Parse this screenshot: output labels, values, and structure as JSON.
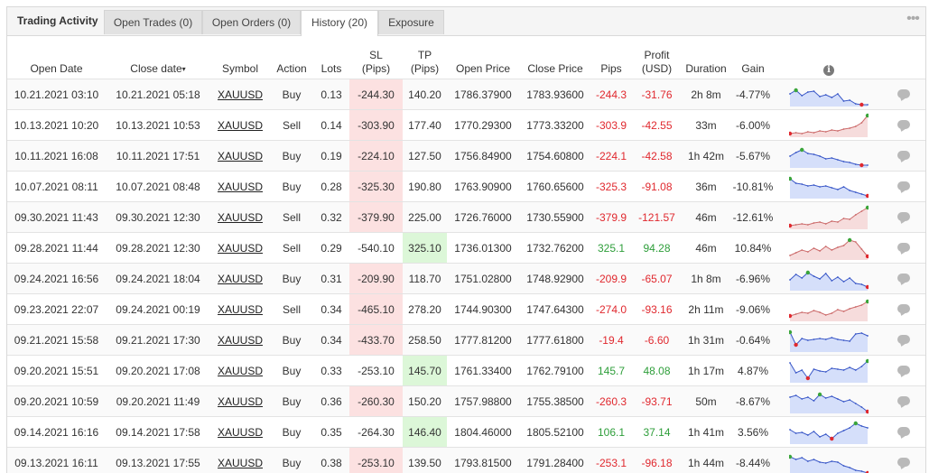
{
  "tabs": {
    "title": "Trading Activity",
    "open_trades": "Open Trades (0)",
    "open_orders": "Open Orders (0)",
    "history": "History (20)",
    "exposure": "Exposure",
    "menu_icon": "more-dots-icon"
  },
  "columns": {
    "open_date": "Open Date",
    "close_date": "Close date",
    "sort_indicator": "▾",
    "symbol": "Symbol",
    "action": "Action",
    "lots": "Lots",
    "sl_1": "SL",
    "sl_2": "(Pips)",
    "tp_1": "TP",
    "tp_2": "(Pips)",
    "open_price": "Open Price",
    "close_price": "Close Price",
    "pips": "Pips",
    "profit_1": "Profit",
    "profit_2": "(USD)",
    "duration": "Duration",
    "gain": "Gain",
    "info_icon": "i"
  },
  "colors": {
    "loss_text": "#e0282e",
    "gain_text": "#2e9e3a",
    "buy_line": "#3a58c8",
    "buy_fill": "#d5dffa",
    "sell_line": "#cc6b6b",
    "sell_fill": "#f6dcdc",
    "max_dot": "#3aa53a",
    "min_dot": "#e0282e"
  },
  "rows": [
    {
      "open": "10.21.2021 03:10",
      "close": "10.21.2021 05:18",
      "symbol": "XAUUSD",
      "action": "Buy",
      "lots": "0.13",
      "sl": "-244.30",
      "tp": "140.20",
      "open_price": "1786.37900",
      "close_price": "1783.93600",
      "pips": "-244.3",
      "profit": "-31.76",
      "duration": "2h 8m",
      "gain": "-4.77%"
    },
    {
      "open": "10.13.2021 10:20",
      "close": "10.13.2021 10:53",
      "symbol": "XAUUSD",
      "action": "Sell",
      "lots": "0.14",
      "sl": "-303.90",
      "tp": "177.40",
      "open_price": "1770.29300",
      "close_price": "1773.33200",
      "pips": "-303.9",
      "profit": "-42.55",
      "duration": "33m",
      "gain": "-6.00%"
    },
    {
      "open": "10.11.2021 16:08",
      "close": "10.11.2021 17:51",
      "symbol": "XAUUSD",
      "action": "Buy",
      "lots": "0.19",
      "sl": "-224.10",
      "tp": "127.50",
      "open_price": "1756.84900",
      "close_price": "1754.60800",
      "pips": "-224.1",
      "profit": "-42.58",
      "duration": "1h 42m",
      "gain": "-5.67%"
    },
    {
      "open": "10.07.2021 08:11",
      "close": "10.07.2021 08:48",
      "symbol": "XAUUSD",
      "action": "Buy",
      "lots": "0.28",
      "sl": "-325.30",
      "tp": "190.80",
      "open_price": "1763.90900",
      "close_price": "1760.65600",
      "pips": "-325.3",
      "profit": "-91.08",
      "duration": "36m",
      "gain": "-10.81%"
    },
    {
      "open": "09.30.2021 11:43",
      "close": "09.30.2021 12:30",
      "symbol": "XAUUSD",
      "action": "Sell",
      "lots": "0.32",
      "sl": "-379.90",
      "tp": "225.00",
      "open_price": "1726.76000",
      "close_price": "1730.55900",
      "pips": "-379.9",
      "profit": "-121.57",
      "duration": "46m",
      "gain": "-12.61%"
    },
    {
      "open": "09.28.2021 11:44",
      "close": "09.28.2021 12:30",
      "symbol": "XAUUSD",
      "action": "Sell",
      "lots": "0.29",
      "sl": "-540.10",
      "tp": "325.10",
      "open_price": "1736.01300",
      "close_price": "1732.76200",
      "pips": "325.1",
      "profit": "94.28",
      "duration": "46m",
      "gain": "10.84%"
    },
    {
      "open": "09.24.2021 16:56",
      "close": "09.24.2021 18:04",
      "symbol": "XAUUSD",
      "action": "Buy",
      "lots": "0.31",
      "sl": "-209.90",
      "tp": "118.70",
      "open_price": "1751.02800",
      "close_price": "1748.92900",
      "pips": "-209.9",
      "profit": "-65.07",
      "duration": "1h 8m",
      "gain": "-6.96%"
    },
    {
      "open": "09.23.2021 22:07",
      "close": "09.24.2021 00:19",
      "symbol": "XAUUSD",
      "action": "Sell",
      "lots": "0.34",
      "sl": "-465.10",
      "tp": "278.20",
      "open_price": "1744.90300",
      "close_price": "1747.64300",
      "pips": "-274.0",
      "profit": "-93.16",
      "duration": "2h 11m",
      "gain": "-9.06%"
    },
    {
      "open": "09.21.2021 15:58",
      "close": "09.21.2021 17:30",
      "symbol": "XAUUSD",
      "action": "Buy",
      "lots": "0.34",
      "sl": "-433.70",
      "tp": "258.50",
      "open_price": "1777.81200",
      "close_price": "1777.61800",
      "pips": "-19.4",
      "profit": "-6.60",
      "duration": "1h 31m",
      "gain": "-0.64%"
    },
    {
      "open": "09.20.2021 15:51",
      "close": "09.20.2021 17:08",
      "symbol": "XAUUSD",
      "action": "Buy",
      "lots": "0.33",
      "sl": "-253.10",
      "tp": "145.70",
      "open_price": "1761.33400",
      "close_price": "1762.79100",
      "pips": "145.7",
      "profit": "48.08",
      "duration": "1h 17m",
      "gain": "4.87%"
    },
    {
      "open": "09.20.2021 10:59",
      "close": "09.20.2021 11:49",
      "symbol": "XAUUSD",
      "action": "Buy",
      "lots": "0.36",
      "sl": "-260.30",
      "tp": "150.20",
      "open_price": "1757.98800",
      "close_price": "1755.38500",
      "pips": "-260.3",
      "profit": "-93.71",
      "duration": "50m",
      "gain": "-8.67%"
    },
    {
      "open": "09.14.2021 16:16",
      "close": "09.14.2021 17:58",
      "symbol": "XAUUSD",
      "action": "Buy",
      "lots": "0.35",
      "sl": "-264.30",
      "tp": "146.40",
      "open_price": "1804.46000",
      "close_price": "1805.52100",
      "pips": "106.1",
      "profit": "37.14",
      "duration": "1h 41m",
      "gain": "3.56%"
    },
    {
      "open": "09.13.2021 16:11",
      "close": "09.13.2021 17:55",
      "symbol": "XAUUSD",
      "action": "Buy",
      "lots": "0.38",
      "sl": "-253.10",
      "tp": "139.50",
      "open_price": "1793.81500",
      "close_price": "1791.28400",
      "pips": "-253.1",
      "profit": "-96.18",
      "duration": "1h 44m",
      "gain": "-8.44%"
    }
  ]
}
